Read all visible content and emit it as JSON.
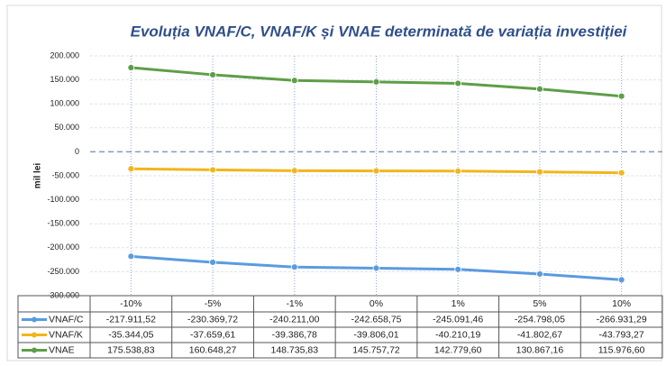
{
  "chart_data": {
    "type": "line",
    "title": "Evoluția VNAF/C, VNAF/K și VNAE determinată de variația investiției",
    "y_label": "mil lei",
    "categories": [
      "-10%",
      "-5%",
      "-1%",
      "0%",
      "1%",
      "5%",
      "10%"
    ],
    "series": [
      {
        "name": "VNAF/C",
        "color": "#5b9be0",
        "values": [
          -217911.52,
          -230369.72,
          -240211.0,
          -242658.75,
          -245091.46,
          -254798.05,
          -266931.29
        ],
        "value_labels": [
          "-217.911,52",
          "-230.369,72",
          "-240.211,00",
          "-242.658,75",
          "-245.091,46",
          "-254.798,05",
          "-266.931,29"
        ]
      },
      {
        "name": "VNAF/K",
        "color": "#f2b51c",
        "values": [
          -35344.05,
          -37659.61,
          -39386.78,
          -39806.01,
          -40210.19,
          -41802.67,
          -43793.27
        ],
        "value_labels": [
          "-35.344,05",
          "-37.659,61",
          "-39.386,78",
          "-39.806,01",
          "-40.210,19",
          "-41.802,67",
          "-43.793,27"
        ]
      },
      {
        "name": "VNAE",
        "color": "#5e9e48",
        "values": [
          175538.83,
          160648.27,
          148735.83,
          145757.72,
          142779.6,
          130867.16,
          115976.6
        ],
        "value_labels": [
          "175.538,83",
          "160.648,27",
          "148.735,83",
          "145.757,72",
          "142.779,60",
          "130.867,16",
          "115.976,60"
        ]
      }
    ],
    "ylim": [
      -300000,
      200000
    ],
    "yticks": [
      {
        "value": -300000,
        "label": "-300.000"
      },
      {
        "value": -250000,
        "label": "-250.000"
      },
      {
        "value": -200000,
        "label": "-200.000"
      },
      {
        "value": -150000,
        "label": "-150.000"
      },
      {
        "value": -100000,
        "label": "-100.000"
      },
      {
        "value": -50000,
        "label": "-50.000"
      },
      0,
      {
        "value": 50000,
        "label": "50.000"
      },
      {
        "value": 100000,
        "label": "100.000"
      },
      {
        "value": 150000,
        "label": "150.000"
      },
      {
        "value": 200000,
        "label": "200.000"
      }
    ],
    "grid": true
  }
}
